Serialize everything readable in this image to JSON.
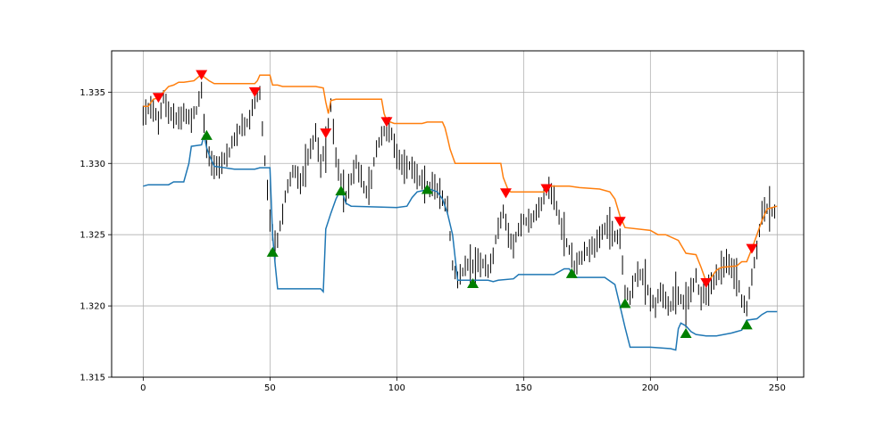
{
  "chart_data": {
    "type": "line",
    "title": "",
    "xlabel": "",
    "ylabel": "",
    "xlim": [
      -12.45,
      260.45
    ],
    "ylim": [
      1.315,
      1.3379
    ],
    "xticks": [
      0,
      50,
      100,
      150,
      200,
      250
    ],
    "yticks": [
      1.315,
      1.32,
      1.325,
      1.33,
      1.335
    ],
    "xtick_labels": [
      "0",
      "50",
      "100",
      "150",
      "200",
      "250"
    ],
    "ytick_labels": [
      "1.315",
      "1.320",
      "1.325",
      "1.330",
      "1.335"
    ],
    "grid": true,
    "colors": {
      "candles": "#000000",
      "upper_band": "#ff7f0e",
      "lower_band": "#1f77b4",
      "sell_marker": "#ff0000",
      "buy_marker": "#008000",
      "grid": "#b0b0b0"
    },
    "price_path": [
      [
        0,
        1.3333
      ],
      [
        3,
        1.334
      ],
      [
        6,
        1.333
      ],
      [
        8,
        1.3345
      ],
      [
        10,
        1.3337
      ],
      [
        13,
        1.333
      ],
      [
        16,
        1.3335
      ],
      [
        19,
        1.3332
      ],
      [
        21,
        1.3338
      ],
      [
        23,
        1.335
      ],
      [
        25,
        1.331
      ],
      [
        27,
        1.33
      ],
      [
        30,
        1.3298
      ],
      [
        33,
        1.3305
      ],
      [
        36,
        1.3318
      ],
      [
        39,
        1.3325
      ],
      [
        42,
        1.333
      ],
      [
        44,
        1.3345
      ],
      [
        46,
        1.335
      ],
      [
        48,
        1.33
      ],
      [
        50,
        1.326
      ],
      [
        52,
        1.324
      ],
      [
        54,
        1.3255
      ],
      [
        56,
        1.3275
      ],
      [
        58,
        1.329
      ],
      [
        60,
        1.3295
      ],
      [
        62,
        1.3285
      ],
      [
        64,
        1.33
      ],
      [
        66,
        1.331
      ],
      [
        68,
        1.332
      ],
      [
        70,
        1.33
      ],
      [
        72,
        1.331
      ],
      [
        74,
        1.334
      ],
      [
        76,
        1.3305
      ],
      [
        78,
        1.3285
      ],
      [
        80,
        1.3275
      ],
      [
        82,
        1.329
      ],
      [
        84,
        1.33
      ],
      [
        86,
        1.329
      ],
      [
        88,
        1.328
      ],
      [
        90,
        1.329
      ],
      [
        92,
        1.331
      ],
      [
        94,
        1.332
      ],
      [
        96,
        1.3325
      ],
      [
        98,
        1.332
      ],
      [
        100,
        1.3305
      ],
      [
        102,
        1.33
      ],
      [
        104,
        1.3298
      ],
      [
        106,
        1.3295
      ],
      [
        108,
        1.329
      ],
      [
        110,
        1.3287
      ],
      [
        112,
        1.3282
      ],
      [
        114,
        1.3285
      ],
      [
        116,
        1.328
      ],
      [
        118,
        1.3275
      ],
      [
        120,
        1.327
      ],
      [
        122,
        1.323
      ],
      [
        124,
        1.322
      ],
      [
        126,
        1.3225
      ],
      [
        128,
        1.323
      ],
      [
        130,
        1.3228
      ],
      [
        132,
        1.3232
      ],
      [
        134,
        1.3228
      ],
      [
        136,
        1.3225
      ],
      [
        138,
        1.3235
      ],
      [
        140,
        1.3255
      ],
      [
        142,
        1.3265
      ],
      [
        144,
        1.325
      ],
      [
        146,
        1.324
      ],
      [
        148,
        1.3255
      ],
      [
        150,
        1.3262
      ],
      [
        152,
        1.3258
      ],
      [
        154,
        1.3262
      ],
      [
        156,
        1.3268
      ],
      [
        158,
        1.3278
      ],
      [
        160,
        1.3283
      ],
      [
        162,
        1.3278
      ],
      [
        164,
        1.3262
      ],
      [
        166,
        1.325
      ],
      [
        168,
        1.324
      ],
      [
        170,
        1.3228
      ],
      [
        172,
        1.3232
      ],
      [
        174,
        1.3238
      ],
      [
        176,
        1.324
      ],
      [
        178,
        1.3242
      ],
      [
        180,
        1.3248
      ],
      [
        182,
        1.3255
      ],
      [
        184,
        1.3253
      ],
      [
        186,
        1.325
      ],
      [
        188,
        1.3248
      ],
      [
        190,
        1.321
      ],
      [
        192,
        1.3205
      ],
      [
        194,
        1.322
      ],
      [
        196,
        1.3222
      ],
      [
        198,
        1.3215
      ],
      [
        200,
        1.3205
      ],
      [
        202,
        1.32
      ],
      [
        204,
        1.321
      ],
      [
        206,
        1.3202
      ],
      [
        208,
        1.3198
      ],
      [
        210,
        1.321
      ],
      [
        212,
        1.3205
      ],
      [
        214,
        1.32
      ],
      [
        216,
        1.321
      ],
      [
        218,
        1.322
      ],
      [
        220,
        1.3205
      ],
      [
        222,
        1.321
      ],
      [
        224,
        1.3215
      ],
      [
        226,
        1.322
      ],
      [
        228,
        1.3225
      ],
      [
        230,
        1.323
      ],
      [
        232,
        1.3225
      ],
      [
        234,
        1.322
      ],
      [
        236,
        1.3205
      ],
      [
        238,
        1.32
      ],
      [
        240,
        1.322
      ],
      [
        242,
        1.324
      ],
      [
        244,
        1.3265
      ],
      [
        246,
        1.327
      ],
      [
        248,
        1.3268
      ]
    ],
    "series": [
      {
        "values": [
          [
            0,
            1.334
          ],
          [
            2,
            1.334
          ],
          [
            4,
            1.3345
          ],
          [
            6,
            1.3346
          ],
          [
            8,
            1.335
          ],
          [
            10,
            1.3354
          ],
          [
            12,
            1.3355
          ],
          [
            14,
            1.3357
          ],
          [
            16,
            1.3357
          ],
          [
            20,
            1.3358
          ],
          [
            22,
            1.3361
          ],
          [
            23,
            1.3362
          ],
          [
            26,
            1.3358
          ],
          [
            28,
            1.3356
          ],
          [
            30,
            1.3356
          ],
          [
            44,
            1.3356
          ],
          [
            45,
            1.3358
          ],
          [
            46,
            1.3362
          ],
          [
            50,
            1.3362
          ],
          [
            51,
            1.3355
          ],
          [
            53,
            1.3355
          ],
          [
            55,
            1.3354
          ],
          [
            68,
            1.3354
          ],
          [
            71,
            1.3353
          ],
          [
            72,
            1.3343
          ],
          [
            73,
            1.3335
          ],
          [
            74,
            1.3344
          ],
          [
            76,
            1.3345
          ],
          [
            94,
            1.3345
          ],
          [
            95,
            1.3335
          ],
          [
            96,
            1.333
          ],
          [
            99,
            1.3328
          ],
          [
            110,
            1.3328
          ],
          [
            112,
            1.3329
          ],
          [
            118,
            1.3329
          ],
          [
            119,
            1.3325
          ],
          [
            120,
            1.3318
          ],
          [
            121,
            1.331
          ],
          [
            123,
            1.33
          ],
          [
            141,
            1.33
          ],
          [
            142,
            1.329
          ],
          [
            144,
            1.3281
          ],
          [
            145,
            1.328
          ],
          [
            158,
            1.328
          ],
          [
            160,
            1.3284
          ],
          [
            168,
            1.3284
          ],
          [
            172,
            1.3283
          ],
          [
            180,
            1.3282
          ],
          [
            184,
            1.328
          ],
          [
            186,
            1.3275
          ],
          [
            188,
            1.3263
          ],
          [
            190,
            1.3255
          ],
          [
            200,
            1.3253
          ],
          [
            203,
            1.325
          ],
          [
            206,
            1.325
          ],
          [
            211,
            1.3246
          ],
          [
            214,
            1.3237
          ],
          [
            218,
            1.3236
          ],
          [
            220,
            1.3227
          ],
          [
            222,
            1.3217
          ],
          [
            224,
            1.322
          ],
          [
            226,
            1.3225
          ],
          [
            228,
            1.3227
          ],
          [
            234,
            1.3228
          ],
          [
            236,
            1.3231
          ],
          [
            238,
            1.3231
          ],
          [
            240,
            1.324
          ],
          [
            242,
            1.325
          ],
          [
            244,
            1.326
          ],
          [
            246,
            1.3268
          ],
          [
            250,
            1.327
          ]
        ]
      },
      {
        "values": [
          [
            0,
            1.3284
          ],
          [
            2,
            1.3285
          ],
          [
            10,
            1.3285
          ],
          [
            12,
            1.3287
          ],
          [
            16,
            1.3287
          ],
          [
            18,
            1.33
          ],
          [
            19,
            1.3312
          ],
          [
            23,
            1.3313
          ],
          [
            24,
            1.332
          ],
          [
            25,
            1.3311
          ],
          [
            26,
            1.3306
          ],
          [
            28,
            1.3298
          ],
          [
            36,
            1.3296
          ],
          [
            44,
            1.3296
          ],
          [
            46,
            1.3297
          ],
          [
            50,
            1.3297
          ],
          [
            51,
            1.325
          ],
          [
            52,
            1.323
          ],
          [
            53,
            1.3212
          ],
          [
            70,
            1.3212
          ],
          [
            71,
            1.321
          ],
          [
            72,
            1.3254
          ],
          [
            74,
            1.3265
          ],
          [
            76,
            1.3275
          ],
          [
            78,
            1.3282
          ],
          [
            80,
            1.3272
          ],
          [
            82,
            1.327
          ],
          [
            100,
            1.3269
          ],
          [
            104,
            1.327
          ],
          [
            106,
            1.3276
          ],
          [
            108,
            1.328
          ],
          [
            113,
            1.3282
          ],
          [
            116,
            1.328
          ],
          [
            118,
            1.3275
          ],
          [
            120,
            1.3265
          ],
          [
            122,
            1.325
          ],
          [
            124,
            1.3218
          ],
          [
            126,
            1.3218
          ],
          [
            136,
            1.3218
          ],
          [
            138,
            1.3217
          ],
          [
            140,
            1.3218
          ],
          [
            146,
            1.3219
          ],
          [
            148,
            1.3222
          ],
          [
            162,
            1.3222
          ],
          [
            166,
            1.3226
          ],
          [
            168,
            1.3226
          ],
          [
            170,
            1.322
          ],
          [
            174,
            1.322
          ],
          [
            182,
            1.322
          ],
          [
            186,
            1.3215
          ],
          [
            188,
            1.32
          ],
          [
            190,
            1.3185
          ],
          [
            192,
            1.3171
          ],
          [
            200,
            1.3171
          ],
          [
            208,
            1.317
          ],
          [
            210,
            1.3169
          ],
          [
            211,
            1.3184
          ],
          [
            212,
            1.3188
          ],
          [
            214,
            1.3186
          ],
          [
            216,
            1.3182
          ],
          [
            218,
            1.318
          ],
          [
            222,
            1.3179
          ],
          [
            226,
            1.3179
          ],
          [
            232,
            1.3181
          ],
          [
            234,
            1.3182
          ],
          [
            236,
            1.3183
          ],
          [
            238,
            1.319
          ],
          [
            242,
            1.3191
          ],
          [
            244,
            1.3194
          ],
          [
            246,
            1.3196
          ],
          [
            250,
            1.3196
          ]
        ]
      }
    ],
    "sell_signals": [
      [
        6,
        1.3346
      ],
      [
        23,
        1.3362
      ],
      [
        44,
        1.335
      ],
      [
        72,
        1.3321
      ],
      [
        96,
        1.3329
      ],
      [
        143,
        1.3279
      ],
      [
        159,
        1.3282
      ],
      [
        188,
        1.3259
      ],
      [
        222,
        1.3216
      ],
      [
        240,
        1.324
      ]
    ],
    "buy_signals": [
      [
        25,
        1.332
      ],
      [
        51,
        1.3238
      ],
      [
        78,
        1.3281
      ],
      [
        112,
        1.3282
      ],
      [
        130,
        1.3216
      ],
      [
        169,
        1.3223
      ],
      [
        190,
        1.3202
      ],
      [
        214,
        1.3181
      ],
      [
        238,
        1.3187
      ]
    ]
  }
}
